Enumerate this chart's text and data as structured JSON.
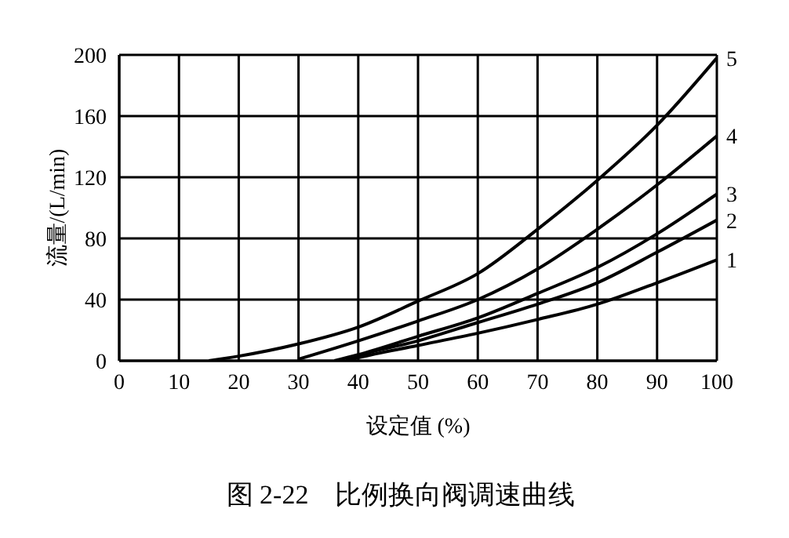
{
  "chart_data": {
    "type": "line",
    "title": "图 2-22　比例换向阀调速曲线",
    "xlabel": "设定值 (%)",
    "ylabel": "流量/(L/min)",
    "xlim": [
      0,
      100
    ],
    "xticks": [
      0,
      10,
      20,
      30,
      40,
      50,
      60,
      70,
      80,
      90,
      100
    ],
    "ylim": [
      0,
      200
    ],
    "yticks": [
      0,
      40,
      80,
      120,
      160,
      200
    ],
    "grid": true,
    "marker": "none",
    "line_style": "solid",
    "series": [
      {
        "name": "1",
        "color": "#000000",
        "x": [
          38,
          40,
          50,
          60,
          70,
          80,
          90,
          100
        ],
        "values": [
          0,
          2,
          10,
          18,
          27,
          37,
          51,
          66
        ]
      },
      {
        "name": "2",
        "color": "#000000",
        "x": [
          38,
          40,
          50,
          60,
          70,
          80,
          90,
          100
        ],
        "values": [
          0,
          3,
          13,
          25,
          37,
          51,
          71,
          92
        ]
      },
      {
        "name": "3",
        "color": "#000000",
        "x": [
          36,
          40,
          50,
          60,
          70,
          80,
          90,
          100
        ],
        "values": [
          0,
          4,
          16,
          28,
          44,
          61,
          83,
          109
        ]
      },
      {
        "name": "4",
        "color": "#000000",
        "x": [
          30,
          40,
          50,
          60,
          70,
          80,
          90,
          100
        ],
        "values": [
          1,
          13,
          26,
          40,
          60,
          86,
          115,
          147
        ]
      },
      {
        "name": "5",
        "color": "#000000",
        "x": [
          15,
          20,
          30,
          40,
          50,
          60,
          70,
          80,
          90,
          100
        ],
        "values": [
          0,
          3,
          11,
          22,
          39,
          57,
          86,
          118,
          154,
          198
        ]
      }
    ]
  }
}
